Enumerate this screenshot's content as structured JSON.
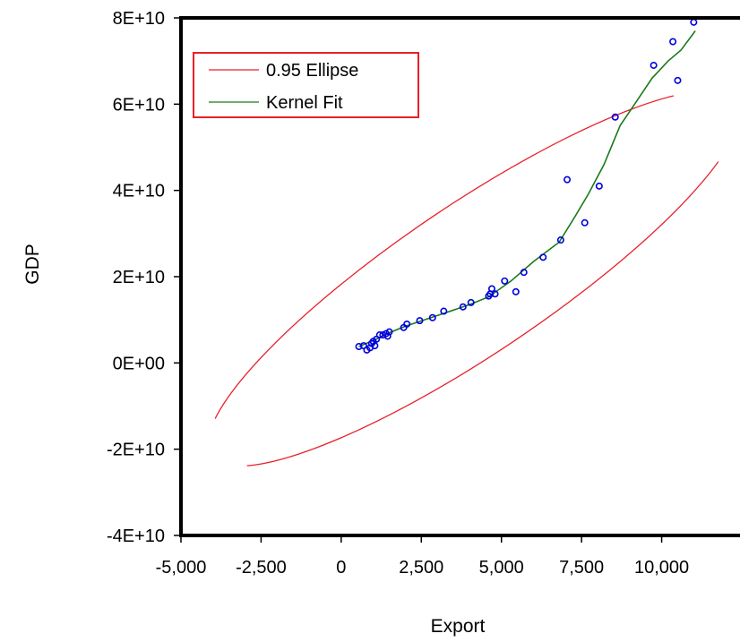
{
  "chart_data": {
    "type": "scatter",
    "title": "",
    "xlabel": "Export",
    "ylabel": "GDP",
    "xlim": [
      -5000,
      12500
    ],
    "ylim": [
      -40000000000,
      80000000000
    ],
    "x_ticks": [
      {
        "value": -5000,
        "label": "-5,000"
      },
      {
        "value": -2500,
        "label": "-2,500"
      },
      {
        "value": 0,
        "label": "0"
      },
      {
        "value": 2500,
        "label": "2,500"
      },
      {
        "value": 5000,
        "label": "5,000"
      },
      {
        "value": 7500,
        "label": "7,500"
      },
      {
        "value": 10000,
        "label": "10,000"
      }
    ],
    "y_ticks": [
      {
        "value": -40000000000,
        "label": "-4E+10"
      },
      {
        "value": -20000000000,
        "label": "-2E+10"
      },
      {
        "value": 0,
        "label": "0E+00"
      },
      {
        "value": 20000000000,
        "label": "2E+10"
      },
      {
        "value": 40000000000,
        "label": "4E+10"
      },
      {
        "value": 60000000000,
        "label": "6E+10"
      },
      {
        "value": 80000000000,
        "label": "8E+10"
      }
    ],
    "grid": false,
    "legend_position": "top-left",
    "colors": {
      "points": "#0000dd",
      "ellipse": "#e8202a",
      "kernel": "#1a7a1a",
      "legend_border": "#e8202a",
      "frame": "#000000"
    },
    "points": [
      {
        "x": 550,
        "y": 3800000000
      },
      {
        "x": 700,
        "y": 4000000000
      },
      {
        "x": 800,
        "y": 3000000000
      },
      {
        "x": 900,
        "y": 3500000000
      },
      {
        "x": 950,
        "y": 4500000000
      },
      {
        "x": 1000,
        "y": 5000000000
      },
      {
        "x": 1050,
        "y": 4000000000
      },
      {
        "x": 1100,
        "y": 5500000000
      },
      {
        "x": 1200,
        "y": 6500000000
      },
      {
        "x": 1300,
        "y": 6500000000
      },
      {
        "x": 1400,
        "y": 6800000000
      },
      {
        "x": 1450,
        "y": 6200000000
      },
      {
        "x": 1500,
        "y": 7200000000
      },
      {
        "x": 1950,
        "y": 8200000000
      },
      {
        "x": 2050,
        "y": 9000000000
      },
      {
        "x": 2450,
        "y": 9800000000
      },
      {
        "x": 2850,
        "y": 10500000000
      },
      {
        "x": 3200,
        "y": 12000000000
      },
      {
        "x": 3800,
        "y": 13000000000
      },
      {
        "x": 4050,
        "y": 14000000000
      },
      {
        "x": 4600,
        "y": 15500000000
      },
      {
        "x": 4650,
        "y": 16000000000
      },
      {
        "x": 4700,
        "y": 17200000000
      },
      {
        "x": 4800,
        "y": 16000000000
      },
      {
        "x": 5100,
        "y": 19000000000
      },
      {
        "x": 5450,
        "y": 16500000000
      },
      {
        "x": 5700,
        "y": 21000000000
      },
      {
        "x": 6300,
        "y": 24500000000
      },
      {
        "x": 6850,
        "y": 28500000000
      },
      {
        "x": 7050,
        "y": 42500000000
      },
      {
        "x": 7600,
        "y": 32500000000
      },
      {
        "x": 8050,
        "y": 41000000000
      },
      {
        "x": 8550,
        "y": 57000000000
      },
      {
        "x": 9750,
        "y": 69000000000
      },
      {
        "x": 10350,
        "y": 74500000000
      },
      {
        "x": 10500,
        "y": 65500000000
      },
      {
        "x": 11000,
        "y": 79000000000
      }
    ],
    "series": [
      {
        "name": "0.95 Ellipse",
        "kind": "ellipse"
      },
      {
        "name": "Kernel Fit",
        "kind": "line",
        "x": [
          550,
          1000,
          1500,
          2000,
          3000,
          4000,
          4600,
          5300,
          6000,
          6800,
          7300,
          7700,
          8200,
          8700,
          9200,
          9700,
          10200,
          10600,
          11050
        ],
        "y": [
          3800000000,
          5200000000,
          7000000000,
          8500000000,
          11000000000,
          13500000000,
          15300000000,
          19000000000,
          23500000000,
          28000000000,
          34000000000,
          39000000000,
          46000000000,
          55000000000,
          60500000000,
          66000000000,
          70000000000,
          72500000000,
          77000000000
        ]
      }
    ]
  }
}
